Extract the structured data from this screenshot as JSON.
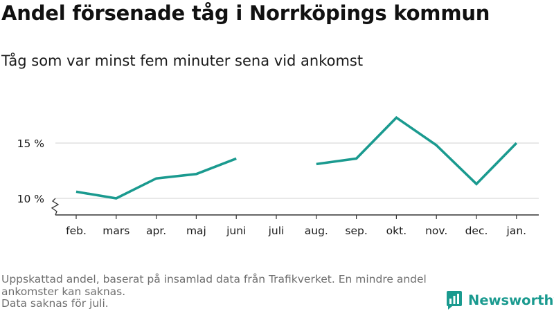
{
  "header": {
    "title": "Andel försenade tåg i Norrköpings kommun",
    "subtitle": "Tåg som var minst fem minuter sena vid ankomst"
  },
  "chart_data": {
    "type": "line",
    "categories": [
      "feb.",
      "mars",
      "apr.",
      "maj",
      "juni",
      "juli",
      "aug.",
      "sep.",
      "okt.",
      "nov.",
      "dec.",
      "jan."
    ],
    "series": [
      {
        "values": [
          10.6,
          10.0,
          11.8,
          12.2,
          13.6,
          null,
          13.1,
          13.6,
          17.3,
          14.8,
          11.3,
          15.0
        ]
      }
    ],
    "y_ticks": [
      10,
      15
    ],
    "y_tick_labels": [
      "10 %",
      "15 %"
    ],
    "ylim": [
      8.6,
      18.0
    ],
    "y_axis_break": true,
    "grid": true,
    "line_color": "#1a9a8f",
    "xlabel": "",
    "ylabel": ""
  },
  "footnote": {
    "lines": [
      "Uppskattad andel, baserat på insamlad data från Trafikverket. En mindre andel",
      "ankomster kan saknas.",
      "Data saknas för juli."
    ]
  },
  "logo": {
    "text": "Newsworthy",
    "color": "#1a9a8f"
  }
}
